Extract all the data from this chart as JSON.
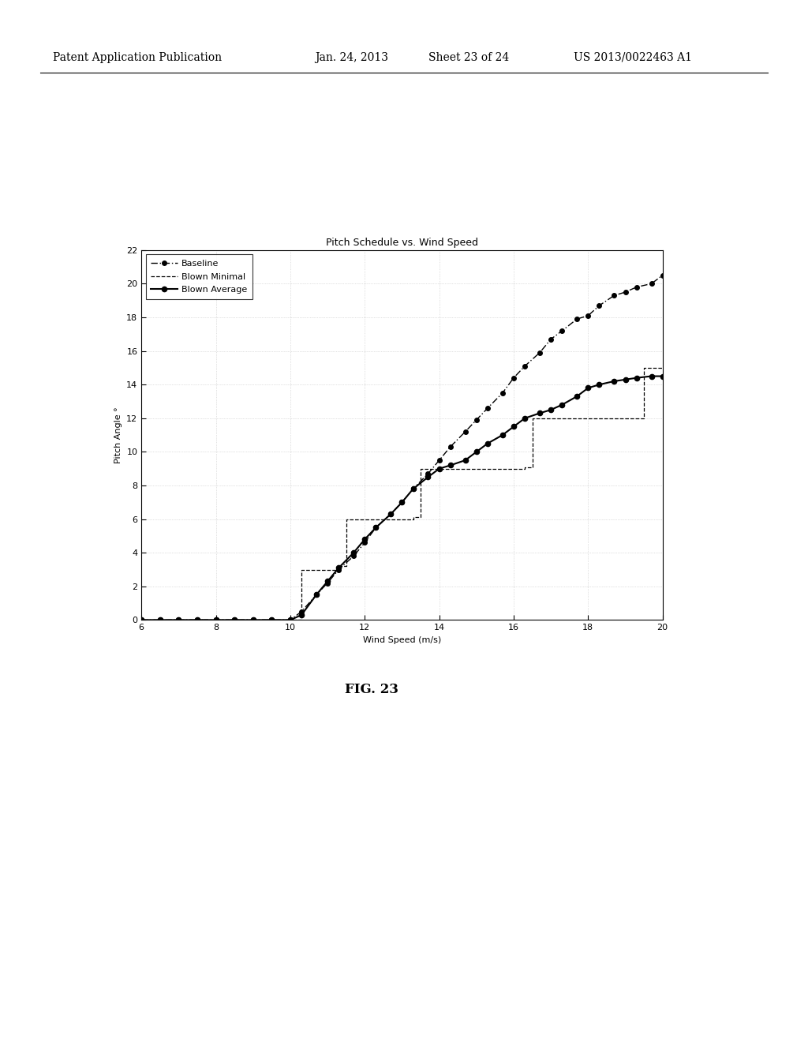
{
  "title": "Pitch Schedule vs. Wind Speed",
  "xlabel": "Wind Speed (m/s)",
  "ylabel": "Pitch Angle °",
  "xlim": [
    6,
    20
  ],
  "ylim": [
    0,
    22
  ],
  "xticks": [
    6,
    8,
    10,
    12,
    14,
    16,
    18,
    20
  ],
  "yticks": [
    0,
    2,
    4,
    6,
    8,
    10,
    12,
    14,
    16,
    18,
    20,
    22
  ],
  "baseline_x": [
    6,
    6.5,
    7,
    7.5,
    8,
    8.5,
    9,
    9.5,
    10,
    10.3,
    10.7,
    11.0,
    11.3,
    11.7,
    12.0,
    12.3,
    12.7,
    13.0,
    13.3,
    13.7,
    14.0,
    14.3,
    14.7,
    15.0,
    15.3,
    15.7,
    16.0,
    16.3,
    16.7,
    17.0,
    17.3,
    17.7,
    18.0,
    18.3,
    18.7,
    19.0,
    19.3,
    19.7,
    20.0
  ],
  "baseline_y": [
    0,
    0,
    0,
    0,
    0,
    0,
    0,
    0,
    0,
    0.5,
    1.5,
    2.2,
    3.0,
    3.8,
    4.6,
    5.5,
    6.3,
    7.0,
    7.8,
    8.7,
    9.5,
    10.3,
    11.2,
    11.9,
    12.6,
    13.5,
    14.4,
    15.1,
    15.9,
    16.7,
    17.2,
    17.9,
    18.1,
    18.7,
    19.3,
    19.5,
    19.8,
    20.0,
    20.5
  ],
  "blown_min_x": [
    6,
    10.3,
    10.3,
    11.3,
    11.3,
    11.5,
    11.5,
    13.3,
    13.3,
    13.5,
    13.5,
    16.3,
    16.3,
    16.5,
    16.5,
    19.5,
    19.5,
    20.0
  ],
  "blown_min_y": [
    0,
    0,
    3.0,
    3.0,
    3.2,
    3.2,
    6.0,
    6.0,
    6.1,
    6.1,
    9.0,
    9.0,
    9.1,
    9.1,
    12.0,
    12.0,
    15.0,
    15.0
  ],
  "blown_avg_x": [
    6,
    6.5,
    7,
    7.5,
    8,
    8.5,
    9,
    9.5,
    10,
    10.3,
    10.7,
    11.0,
    11.3,
    11.7,
    12.0,
    12.3,
    12.7,
    13.0,
    13.3,
    13.7,
    14.0,
    14.3,
    14.7,
    15.0,
    15.3,
    15.7,
    16.0,
    16.3,
    16.7,
    17.0,
    17.3,
    17.7,
    18.0,
    18.3,
    18.7,
    19.0,
    19.3,
    19.7,
    20.0
  ],
  "blown_avg_y": [
    0,
    0,
    0,
    0,
    0,
    0,
    0,
    0,
    0,
    0.3,
    1.5,
    2.3,
    3.1,
    4.0,
    4.8,
    5.5,
    6.3,
    7.0,
    7.8,
    8.5,
    9.0,
    9.2,
    9.5,
    10.0,
    10.5,
    11.0,
    11.5,
    12.0,
    12.3,
    12.5,
    12.8,
    13.3,
    13.8,
    14.0,
    14.2,
    14.3,
    14.4,
    14.5,
    14.5
  ],
  "bg_color": "#ffffff",
  "header_line1": "Patent Application Publication",
  "header_date": "Jan. 24, 2013",
  "header_sheet": "Sheet 23 of 24",
  "header_num": "US 2013/0022463 A1",
  "fig_caption": "FIG. 23",
  "title_fontsize": 9,
  "label_fontsize": 8,
  "tick_fontsize": 8,
  "legend_fontsize": 8,
  "header_fontsize": 10,
  "caption_fontsize": 12
}
